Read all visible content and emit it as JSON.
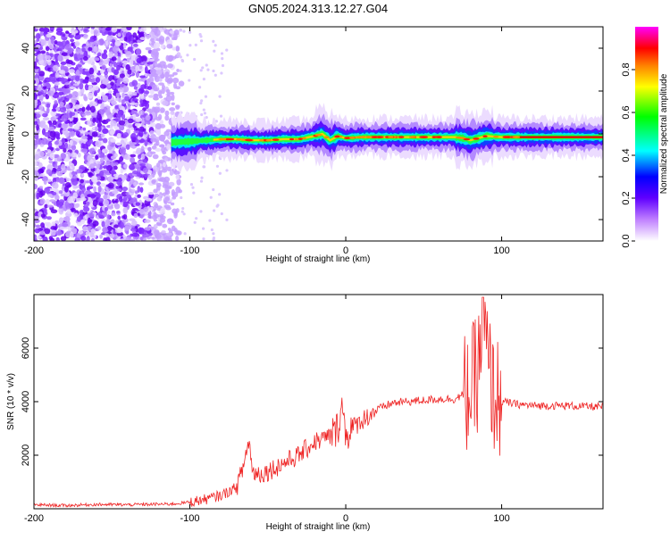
{
  "title": "GN05.2024.313.12.27.G04",
  "chart_data": [
    {
      "type": "heatmap",
      "name": "spectrogram",
      "xlabel": "Height of straight line (km)",
      "ylabel": "Frequency (Hz)",
      "xlim": [
        -200,
        165
      ],
      "ylim": [
        -50,
        50
      ],
      "xticks": [
        -200,
        -100,
        0,
        100
      ],
      "xtick_labels": [
        "-200",
        "-100",
        "0",
        "100"
      ],
      "yticks": [
        -40,
        -20,
        0,
        20,
        40
      ],
      "ytick_labels": [
        "-40",
        "-20",
        "0",
        "20",
        "40"
      ],
      "noise_region_x": [
        -200,
        -105
      ],
      "signal_trace": {
        "x": [
          -112,
          -100,
          -90,
          -80,
          -70,
          -60,
          -50,
          -40,
          -30,
          -20,
          -15,
          -10,
          -5,
          0,
          10,
          30,
          50,
          70,
          75,
          80,
          85,
          90,
          100,
          120,
          140,
          165
        ],
        "freq": [
          -4,
          -3.5,
          -3,
          -2.5,
          -2.5,
          -3,
          -3,
          -2.5,
          -2.5,
          -1,
          0,
          -3,
          -1,
          -2,
          -1.5,
          -1.5,
          -1.5,
          -1.5,
          -2,
          -3,
          -2,
          -1,
          -1.5,
          -1.5,
          -1.5,
          -1.5
        ]
      },
      "colorbar": {
        "label": "Normalized spectral amplitude",
        "range": [
          0,
          1
        ],
        "ticks": [
          0.0,
          0.2,
          0.4,
          0.6,
          0.8
        ],
        "tick_labels": [
          "0.0",
          "0.2",
          "0.4",
          "0.6",
          "0.8"
        ],
        "colors": [
          "#ffffff",
          "#8000ff",
          "#0000ff",
          "#00ffff",
          "#00ff00",
          "#ffff00",
          "#ff8000",
          "#ff0000",
          "#ff00ff"
        ]
      }
    },
    {
      "type": "line",
      "name": "snr",
      "xlabel": "Height of straight line (km)",
      "ylabel": "SNR (10 * v/v)",
      "xlim": [
        -200,
        165
      ],
      "ylim": [
        0,
        8000
      ],
      "xticks": [
        -200,
        -100,
        0,
        100
      ],
      "xtick_labels": [
        "-200",
        "-100",
        "0",
        "100"
      ],
      "yticks": [
        2000,
        4000,
        6000
      ],
      "ytick_labels": [
        "2000",
        "4000",
        "6000"
      ],
      "color": "#ee2222",
      "series": [
        {
          "x": [
            -200,
            -180,
            -160,
            -140,
            -120,
            -110,
            -100,
            -90,
            -80,
            -70,
            -66,
            -62,
            -60,
            -55,
            -50,
            -40,
            -30,
            -20,
            -10,
            -5,
            -3,
            0,
            10,
            20,
            30,
            40,
            50,
            60,
            70,
            80,
            85,
            88,
            90,
            92,
            95,
            100,
            110,
            120,
            140,
            165
          ],
          "y": [
            150,
            120,
            160,
            150,
            170,
            180,
            250,
            350,
            500,
            800,
            1500,
            2600,
            1400,
            1300,
            1400,
            1700,
            2000,
            2500,
            2700,
            3000,
            4000,
            2800,
            3300,
            3700,
            3950,
            4000,
            4050,
            4100,
            4100,
            4400,
            5200,
            7300,
            6000,
            5000,
            4300,
            4000,
            3900,
            3850,
            3850,
            3800
          ]
        }
      ]
    }
  ]
}
